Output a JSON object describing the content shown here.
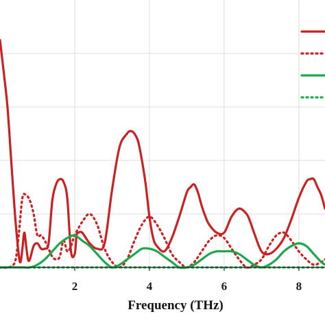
{
  "chart_data": {
    "type": "line",
    "title": "",
    "xlabel": "Frequency (THz)",
    "ylabel": "",
    "x_ticks": [
      2,
      4,
      6,
      8
    ],
    "xlim": [
      0.0,
      8.7
    ],
    "ylim": [
      0,
      1.0
    ],
    "grid": true,
    "legend_position": "top-right",
    "series": [
      {
        "name": "",
        "color": "#cc1f1f",
        "dash": "solid",
        "x": [
          0.0,
          0.1,
          0.2,
          0.3,
          0.4,
          0.5,
          0.55,
          0.6,
          0.65,
          0.7,
          0.75,
          0.8,
          0.9,
          1.0,
          1.1,
          1.2,
          1.3,
          1.4,
          1.5,
          1.6,
          1.7,
          1.8,
          1.9,
          2.0,
          2.05,
          2.1,
          2.2,
          2.4,
          2.6,
          2.8,
          3.0,
          3.2,
          3.4,
          3.5,
          3.6,
          3.7,
          3.8,
          3.9,
          4.0,
          4.1,
          4.2,
          4.4,
          4.6,
          4.8,
          5.0,
          5.1,
          5.2,
          5.3,
          5.4,
          5.5,
          5.6,
          5.8,
          6.0,
          6.2,
          6.4,
          6.6,
          6.7,
          6.8,
          7.0,
          7.2,
          7.4,
          7.6,
          7.8,
          8.0,
          8.2,
          8.3,
          8.4,
          8.5,
          8.6,
          8.7
        ],
        "y": [
          0.85,
          0.73,
          0.6,
          0.4,
          0.2,
          0.05,
          0.02,
          0.07,
          0.13,
          0.08,
          0.03,
          0.03,
          0.08,
          0.09,
          0.07,
          0.07,
          0.09,
          0.25,
          0.31,
          0.33,
          0.32,
          0.26,
          0.06,
          0.05,
          0.12,
          0.13,
          0.13,
          0.09,
          0.07,
          0.09,
          0.29,
          0.45,
          0.5,
          0.51,
          0.5,
          0.47,
          0.4,
          0.31,
          0.19,
          0.11,
          0.08,
          0.06,
          0.11,
          0.19,
          0.28,
          0.3,
          0.31,
          0.28,
          0.23,
          0.19,
          0.16,
          0.13,
          0.13,
          0.19,
          0.22,
          0.2,
          0.17,
          0.13,
          0.06,
          0.05,
          0.07,
          0.11,
          0.18,
          0.26,
          0.32,
          0.33,
          0.33,
          0.3,
          0.27,
          0.22
        ]
      },
      {
        "name": "",
        "color": "#cc1f1f",
        "dash": "dotted",
        "x": [
          0.0,
          0.2,
          0.4,
          0.5,
          0.6,
          0.7,
          0.8,
          0.9,
          1.0,
          1.1,
          1.2,
          1.3,
          1.4,
          1.5,
          1.6,
          1.7,
          1.8,
          1.9,
          2.0,
          2.2,
          2.4,
          2.6,
          2.8,
          3.0,
          3.2,
          3.4,
          3.6,
          3.8,
          4.0,
          4.2,
          4.4,
          4.6,
          4.8,
          5.0,
          5.2,
          5.4,
          5.6,
          5.8,
          6.0,
          6.2,
          6.4,
          6.6,
          6.8,
          7.0,
          7.2,
          7.4,
          7.6,
          7.8,
          8.0,
          8.2,
          8.4,
          8.6,
          8.7
        ],
        "y": [
          0.0,
          0.0,
          0.02,
          0.12,
          0.26,
          0.27,
          0.25,
          0.2,
          0.12,
          0.12,
          0.1,
          0.07,
          0.04,
          0.03,
          0.04,
          0.1,
          0.06,
          0.08,
          0.12,
          0.17,
          0.2,
          0.16,
          0.07,
          0.02,
          0.0,
          0.03,
          0.1,
          0.16,
          0.19,
          0.16,
          0.11,
          0.05,
          0.02,
          0.0,
          0.02,
          0.06,
          0.1,
          0.12,
          0.11,
          0.07,
          0.03,
          0.0,
          0.01,
          0.03,
          0.08,
          0.12,
          0.13,
          0.1,
          0.06,
          0.03,
          0.01,
          0.02,
          0.03
        ]
      },
      {
        "name": "",
        "color": "#1aa84a",
        "dash": "solid",
        "x": [
          0.0,
          0.2,
          0.4,
          0.6,
          0.8,
          1.0,
          1.2,
          1.4,
          1.6,
          1.8,
          2.0,
          2.2,
          2.4,
          2.6,
          2.8,
          3.0,
          3.2,
          3.4,
          3.6,
          3.8,
          4.0,
          4.2,
          4.4,
          4.6,
          4.8,
          5.0,
          5.2,
          5.4,
          5.6,
          5.8,
          6.0,
          6.2,
          6.4,
          6.6,
          6.8,
          7.0,
          7.2,
          7.4,
          7.6,
          7.8,
          8.0,
          8.2,
          8.4,
          8.6,
          8.7
        ],
        "y": [
          0.0,
          0.0,
          0.0,
          0.0,
          0.0,
          0.01,
          0.03,
          0.06,
          0.09,
          0.11,
          0.12,
          0.1,
          0.08,
          0.05,
          0.02,
          0.0,
          0.01,
          0.03,
          0.05,
          0.07,
          0.07,
          0.06,
          0.04,
          0.02,
          0.0,
          0.0,
          0.01,
          0.03,
          0.05,
          0.06,
          0.06,
          0.06,
          0.05,
          0.03,
          0.01,
          0.0,
          0.01,
          0.03,
          0.06,
          0.08,
          0.09,
          0.08,
          0.05,
          0.02,
          0.01
        ]
      },
      {
        "name": "",
        "color": "#1aa84a",
        "dash": "dotted",
        "x": [
          0.0,
          1.0,
          2.0,
          3.0,
          4.0,
          5.0,
          6.0,
          7.0,
          8.0,
          8.7
        ],
        "y": [
          0.0,
          0.0,
          0.0,
          0.0,
          0.0,
          0.0,
          0.0,
          0.0,
          0.0,
          0.0
        ]
      }
    ]
  }
}
